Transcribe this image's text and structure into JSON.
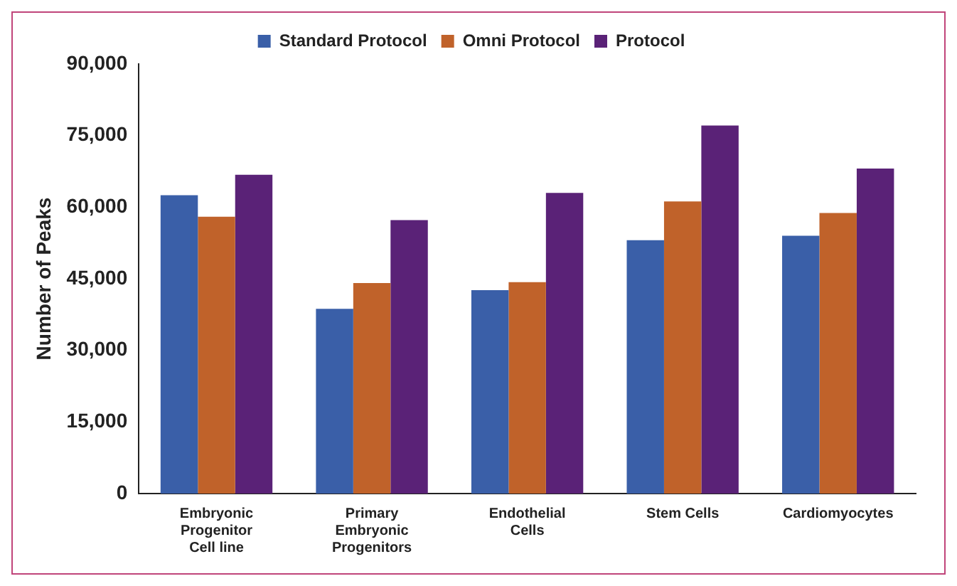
{
  "chart_data": {
    "type": "bar",
    "ylabel": "Number of Peaks",
    "categories": [
      "Embryonic Progenitor Cell line",
      "Primary Embryonic Progenitors",
      "Endothelial Cells",
      "Stem Cells",
      "Cardiomyocytes"
    ],
    "series": [
      {
        "name": "Standard Protocol",
        "color": "#3a5fa8",
        "values": [
          62500,
          38700,
          42600,
          53100,
          54000
        ]
      },
      {
        "name": "Omni Protocol",
        "color": "#c0622a",
        "values": [
          58000,
          44100,
          44300,
          61200,
          58800
        ]
      },
      {
        "name": "Protocol",
        "color": "#5a2277",
        "values": [
          66800,
          57300,
          63000,
          77100,
          68100
        ]
      }
    ],
    "ylim": [
      0,
      90000
    ],
    "yticks": [
      {
        "value": 0,
        "label": "0"
      },
      {
        "value": 15000,
        "label": "15,000"
      },
      {
        "value": 30000,
        "label": "30,000"
      },
      {
        "value": 45000,
        "label": "45,000"
      },
      {
        "value": 60000,
        "label": "60,000"
      },
      {
        "value": 75000,
        "label": "75,000"
      },
      {
        "value": 90000,
        "label": "90,000"
      }
    ],
    "grid": false,
    "legend": "top"
  }
}
